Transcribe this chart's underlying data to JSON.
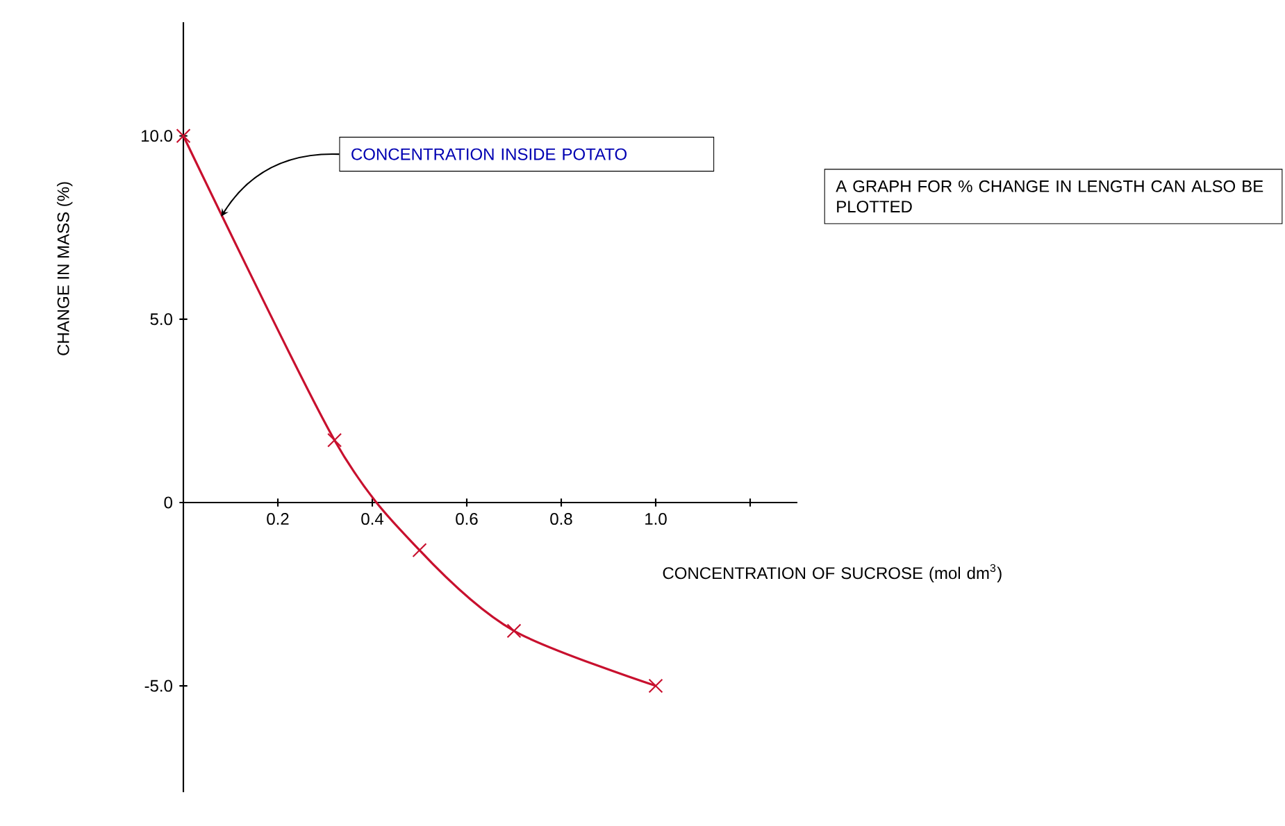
{
  "chart_data": {
    "type": "line",
    "xlabel": "CONCENTRATION OF SUCROSE (mol dm$^{3}$)",
    "ylabel": "CHANGE IN MASS (%)",
    "x": [
      0,
      0.32,
      0.5,
      0.7,
      1.0
    ],
    "series": [
      {
        "color": "#c8102e",
        "values": [
          10.0,
          1.7,
          -1.3,
          -3.5,
          -5.0
        ]
      }
    ],
    "xlim": [
      0,
      1.3
    ],
    "ylim": [
      -7.9,
      13.1
    ],
    "xticks": [
      0.2,
      0.4,
      0.6,
      0.8,
      {
        "value": 1.0,
        "label": "1.0"
      },
      {
        "value": 1.2,
        "label": null
      }
    ],
    "yticks": [
      {
        "value": -5,
        "label": "-5.0"
      },
      0,
      {
        "value": 5,
        "label": "5.0"
      },
      {
        "value": 10,
        "label": "10.0"
      }
    ],
    "marker": "cross",
    "line_style": "solid",
    "grid": false,
    "annotations": [
      {
        "text": "CONCENTRATION INSIDE POTATO",
        "x": 0.08,
        "y": 7.8
      },
      "A GRAPH FOR % CHANGE IN LENGTH CAN ALSO BE PLOTTED"
    ]
  }
}
